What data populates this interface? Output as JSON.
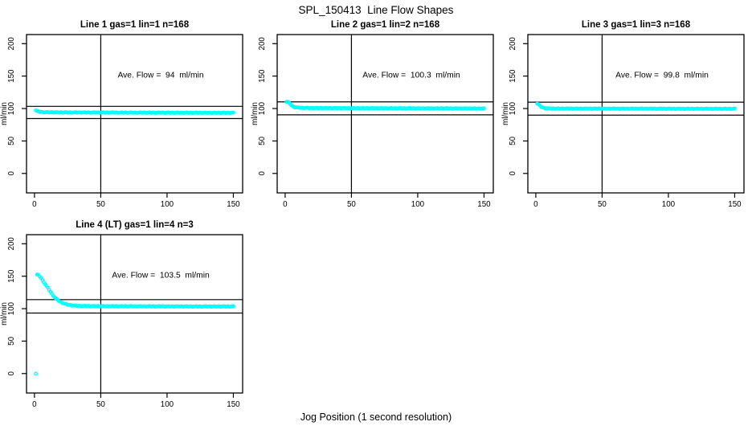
{
  "page": {
    "title": "SPL_150413  Line Flow Shapes",
    "xlabel": "Jog Position (1 second resolution)",
    "background": "#ffffff"
  },
  "chart_data": [
    {
      "type": "scatter",
      "title": "Line 1 gas=1 lin=1 n=168",
      "annotation": "Ave. Flow =  94  ml/min",
      "ave_flow_ml_min": 94,
      "gas": 1,
      "lin": 1,
      "n": 168,
      "ylabel": "ml/min",
      "xlim": [
        -6,
        157
      ],
      "ylim": [
        -30,
        214
      ],
      "xticks": [
        0,
        50,
        100,
        150
      ],
      "yticks": [
        0,
        50,
        100,
        150,
        200
      ],
      "vline_x": 50,
      "hlines": [
        103.4,
        84.6
      ],
      "marker": "open-circle",
      "marker_color": "#00ffff",
      "line_color": "#000000",
      "annotation_pos": [
        95,
        151
      ],
      "anchors": [
        [
          1,
          97.2
        ],
        [
          2,
          96
        ],
        [
          3,
          95.2
        ],
        [
          4,
          94.8
        ],
        [
          6,
          94.5
        ],
        [
          8,
          94.3
        ],
        [
          12,
          94.1
        ],
        [
          20,
          94
        ],
        [
          30,
          93.9
        ],
        [
          40,
          93.9
        ],
        [
          50,
          93.8
        ],
        [
          60,
          93.8
        ],
        [
          70,
          93.7
        ],
        [
          80,
          93.7
        ],
        [
          90,
          93.6
        ],
        [
          100,
          93.6
        ],
        [
          110,
          93.5
        ],
        [
          120,
          93.5
        ],
        [
          130,
          93.4
        ],
        [
          140,
          93.4
        ],
        [
          150,
          93.4
        ]
      ]
    },
    {
      "type": "scatter",
      "title": "Line 2 gas=1 lin=2 n=168",
      "annotation": "Ave. Flow =  100.3  ml/min",
      "ave_flow_ml_min": 100.3,
      "gas": 1,
      "lin": 2,
      "n": 168,
      "ylabel": "ml/min",
      "xlim": [
        -6,
        157
      ],
      "ylim": [
        -30,
        214
      ],
      "xticks": [
        0,
        50,
        100,
        150
      ],
      "yticks": [
        0,
        50,
        100,
        150,
        200
      ],
      "vline_x": 50,
      "hlines": [
        110.3,
        90.3
      ],
      "marker": "open-circle",
      "marker_color": "#00ffff",
      "line_color": "#000000",
      "annotation_pos": [
        95,
        151
      ],
      "anchors": [
        [
          1,
          110.5
        ],
        [
          2,
          110
        ],
        [
          3,
          108.5
        ],
        [
          4,
          106.5
        ],
        [
          5,
          104.5
        ],
        [
          6,
          103
        ],
        [
          7,
          102.3
        ],
        [
          8,
          101.8
        ],
        [
          10,
          101.3
        ],
        [
          12,
          101
        ],
        [
          15,
          100.9
        ],
        [
          20,
          100.8
        ],
        [
          30,
          100.7
        ],
        [
          40,
          100.6
        ],
        [
          50,
          100.5
        ],
        [
          70,
          100.4
        ],
        [
          90,
          100.3
        ],
        [
          110,
          100.2
        ],
        [
          130,
          100.1
        ],
        [
          150,
          100
        ]
      ]
    },
    {
      "type": "scatter",
      "title": "Line 3 gas=1 lin=3 n=168",
      "annotation": "Ave. Flow =  99.8  ml/min",
      "ave_flow_ml_min": 99.8,
      "gas": 1,
      "lin": 3,
      "n": 168,
      "ylabel": "ml/min",
      "xlim": [
        -6,
        157
      ],
      "ylim": [
        -30,
        214
      ],
      "xticks": [
        0,
        50,
        100,
        150
      ],
      "yticks": [
        0,
        50,
        100,
        150,
        200
      ],
      "vline_x": 50,
      "hlines": [
        109.8,
        89.8
      ],
      "marker": "open-circle",
      "marker_color": "#00ffff",
      "line_color": "#000000",
      "annotation_pos": [
        95,
        151
      ],
      "anchors": [
        [
          1,
          107.5
        ],
        [
          2,
          106.5
        ],
        [
          3,
          104.5
        ],
        [
          4,
          102.8
        ],
        [
          5,
          101.8
        ],
        [
          6,
          101
        ],
        [
          7,
          100.6
        ],
        [
          8,
          100.3
        ],
        [
          10,
          100.1
        ],
        [
          12,
          100
        ],
        [
          15,
          99.9
        ],
        [
          20,
          99.9
        ],
        [
          30,
          99.8
        ],
        [
          50,
          99.8
        ],
        [
          70,
          99.7
        ],
        [
          90,
          99.7
        ],
        [
          110,
          99.6
        ],
        [
          130,
          99.6
        ],
        [
          150,
          99.6
        ]
      ]
    },
    {
      "type": "scatter",
      "title": "Line 4 (LT) gas=1 lin=4 n=3",
      "annotation": "Ave. Flow =  103.5  ml/min",
      "ave_flow_ml_min": 103.5,
      "gas": 1,
      "lin": 4,
      "n": 3,
      "ylabel": "ml/min",
      "xlim": [
        -6,
        157
      ],
      "ylim": [
        -30,
        214
      ],
      "xticks": [
        0,
        50,
        100,
        150
      ],
      "yticks": [
        0,
        50,
        100,
        150,
        200
      ],
      "vline_x": 50,
      "hlines": [
        113.9,
        93.2
      ],
      "marker": "open-circle",
      "marker_color": "#00ffff",
      "line_color": "#000000",
      "annotation_pos": [
        95,
        151
      ],
      "anchors": [
        [
          1,
          0
        ],
        [
          2,
          152.5
        ],
        [
          3,
          151.5
        ],
        [
          4,
          149.5
        ],
        [
          5,
          147
        ],
        [
          6,
          144
        ],
        [
          7,
          141
        ],
        [
          8,
          138
        ],
        [
          9,
          135
        ],
        [
          10,
          132
        ],
        [
          11,
          129
        ],
        [
          12,
          126
        ],
        [
          13,
          123
        ],
        [
          14,
          120.5
        ],
        [
          15,
          118
        ],
        [
          16,
          116
        ],
        [
          17,
          114
        ],
        [
          18,
          112.5
        ],
        [
          19,
          111
        ],
        [
          20,
          110
        ],
        [
          21,
          109
        ],
        [
          22,
          108.2
        ],
        [
          23,
          107.5
        ],
        [
          24,
          106.8
        ],
        [
          25,
          106.2
        ],
        [
          26,
          105.8
        ],
        [
          27,
          105.4
        ],
        [
          28,
          105.1
        ],
        [
          30,
          104.7
        ],
        [
          32,
          104.4
        ],
        [
          34,
          104.2
        ],
        [
          36,
          104.1
        ],
        [
          40,
          104
        ],
        [
          45,
          103.9
        ],
        [
          50,
          103.8
        ],
        [
          60,
          103.7
        ],
        [
          70,
          103.7
        ],
        [
          80,
          103.6
        ],
        [
          90,
          103.6
        ],
        [
          100,
          103.5
        ],
        [
          110,
          103.5
        ],
        [
          120,
          103.4
        ],
        [
          130,
          103.4
        ],
        [
          140,
          103.4
        ],
        [
          150,
          103.4
        ]
      ]
    }
  ]
}
